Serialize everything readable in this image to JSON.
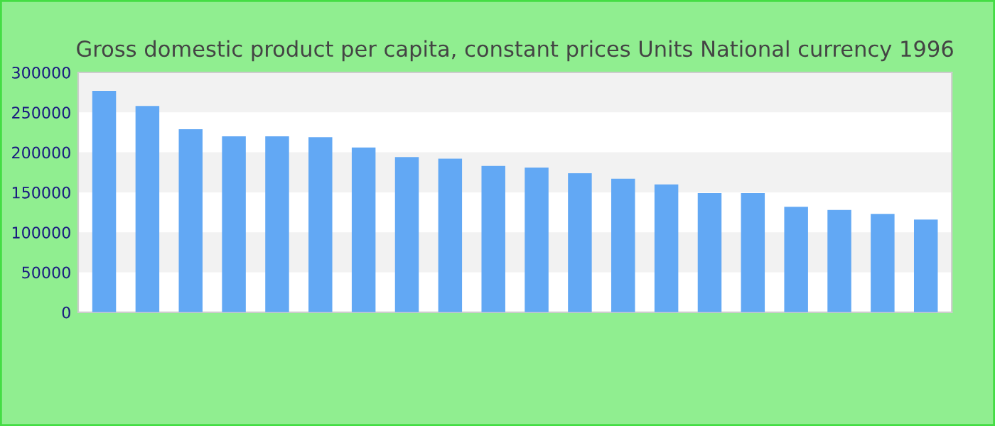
{
  "chart_data": {
    "type": "bar",
    "title": "Gross domestic product per capita, constant prices Units National currency 1996",
    "categories": [
      null,
      null,
      null,
      null,
      null,
      null,
      null,
      null,
      null,
      null,
      null,
      null,
      null,
      null,
      null,
      null,
      null,
      null,
      null,
      null
    ],
    "values": [
      277000,
      258000,
      229000,
      220000,
      220000,
      219000,
      206000,
      194000,
      192000,
      183000,
      181000,
      174000,
      167000,
      160000,
      149000,
      149000,
      132000,
      128000,
      123000,
      116000
    ],
    "color": "#62a8f4",
    "ylim": [
      0,
      300000
    ],
    "yticks": [
      0,
      50000,
      100000,
      150000,
      200000,
      250000,
      300000
    ]
  }
}
